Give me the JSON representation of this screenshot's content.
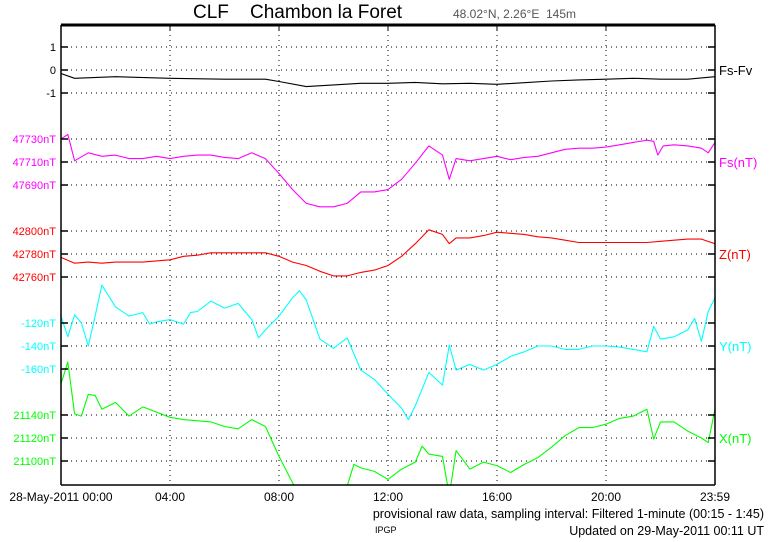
{
  "header": {
    "title": "CLF    Chambon la Foret",
    "coords": "48.02°N, 2.26°E  145m"
  },
  "footer": {
    "note": "provisional raw data, sampling interval: Filtered 1-minute (00:15 - 1:45)",
    "org": "IPGP",
    "updated": "Updated on 29-May-2011 00:11 UT"
  },
  "chart_data": {
    "type": "line",
    "x_unit": "hours",
    "x_range": [
      0,
      24
    ],
    "x_ticks": [
      0,
      4,
      8,
      12,
      16,
      20,
      24
    ],
    "x_tick_labels": [
      "28-May-2011 00:00",
      "04:00",
      "08:00",
      "12:00",
      "16:00",
      "20:00",
      "23:59"
    ],
    "grid": true,
    "series": [
      {
        "name": "Fs-Fv",
        "color": "#000000",
        "ticks": [
          1,
          0,
          -1
        ],
        "tick_labels": [
          "1",
          "0",
          "-1"
        ],
        "x": [
          0,
          0.5,
          2,
          4,
          6,
          7.5,
          8,
          9,
          10,
          11,
          12,
          13,
          14,
          15,
          16,
          17,
          18,
          19,
          20,
          21,
          22,
          23,
          24
        ],
        "values": [
          -0.15,
          -0.36,
          -0.29,
          -0.36,
          -0.4,
          -0.4,
          -0.5,
          -0.72,
          -0.65,
          -0.58,
          -0.58,
          -0.54,
          -0.6,
          -0.58,
          -0.62,
          -0.55,
          -0.48,
          -0.43,
          -0.4,
          -0.36,
          -0.4,
          -0.4,
          -0.29
        ]
      },
      {
        "name": "Fs(nT)",
        "color": "#ff00ff",
        "ticks": [
          47730,
          47710,
          47690
        ],
        "tick_labels": [
          "47730nT",
          "47710nT",
          "47690nT"
        ],
        "x": [
          0,
          0.25,
          0.5,
          1,
          1.5,
          2,
          2.5,
          3,
          3.5,
          4,
          4.5,
          5,
          5.5,
          6,
          6.5,
          7,
          7.5,
          8,
          8.5,
          9,
          9.5,
          10,
          10.5,
          11,
          11.5,
          12,
          12.5,
          13,
          13.5,
          14,
          14.25,
          14.5,
          15,
          15.5,
          16,
          16.5,
          17,
          17.5,
          18,
          18.5,
          19,
          19.5,
          20,
          20.5,
          21,
          21.5,
          21.75,
          21.9,
          22.1,
          22.5,
          23,
          23.5,
          23.75,
          24
        ],
        "values": [
          47730,
          47734,
          47711,
          47718,
          47715,
          47716,
          47713,
          47713,
          47715,
          47713,
          47715,
          47716,
          47716,
          47714,
          47713,
          47718,
          47713,
          47700,
          47686,
          47674,
          47671,
          47671,
          47674,
          47684,
          47684,
          47686,
          47695,
          47709,
          47724,
          47716,
          47695,
          47713,
          47711,
          47713,
          47715,
          47712,
          47714,
          47715,
          47718,
          47721,
          47722,
          47722,
          47723,
          47725,
          47727,
          47729,
          47728,
          47716,
          47724,
          47725,
          47724,
          47722,
          47718,
          47727
        ]
      },
      {
        "name": "Z(nT)",
        "color": "#ff0000",
        "ticks": [
          42800,
          42780,
          42760
        ],
        "tick_labels": [
          "42800nT",
          "42780nT",
          "42760nT"
        ],
        "x": [
          0,
          0.5,
          1,
          1.5,
          2,
          2.5,
          3,
          3.5,
          4,
          4.5,
          5,
          5.5,
          6,
          6.5,
          7,
          7.5,
          8,
          8.5,
          9,
          9.5,
          10,
          10.5,
          11,
          11.5,
          12,
          12.5,
          13,
          13.5,
          14,
          14.25,
          14.5,
          15,
          15.5,
          16,
          16.5,
          17,
          17.5,
          18,
          18.5,
          19,
          19.5,
          20,
          20.5,
          21,
          21.5,
          22,
          22.5,
          23,
          23.5,
          24
        ],
        "values": [
          42777,
          42772,
          42773,
          42772,
          42773,
          42773,
          42773,
          42774,
          42775,
          42778,
          42779,
          42781,
          42781,
          42781,
          42781,
          42781,
          42778,
          42773,
          42770,
          42765,
          42761,
          42761,
          42764,
          42766,
          42770,
          42778,
          42789,
          42801,
          42797,
          42789,
          42794,
          42794,
          42796,
          42799,
          42798,
          42797,
          42795,
          42794,
          42792,
          42790,
          42790,
          42790,
          42790,
          42790,
          42790,
          42791,
          42792,
          42793,
          42793,
          42789
        ]
      },
      {
        "name": "Y(nT)",
        "color": "#00ffff",
        "ticks": [
          -120,
          -140,
          -160
        ],
        "tick_labels": [
          "-120nT",
          "-140nT",
          "-160nT"
        ],
        "x": [
          0,
          0.25,
          0.5,
          0.75,
          1,
          1.25,
          1.5,
          2,
          2.5,
          3,
          3.25,
          3.5,
          4,
          4.5,
          4.75,
          5,
          5.5,
          6,
          6.5,
          7,
          7.25,
          7.5,
          8,
          8.5,
          8.75,
          9,
          9.5,
          10,
          10.5,
          11,
          11.5,
          12,
          12.5,
          12.75,
          13,
          13.5,
          14,
          14.25,
          14.5,
          15,
          15.5,
          16,
          16.5,
          17,
          17.5,
          18,
          18.5,
          19,
          19.5,
          20,
          20.5,
          21,
          21.5,
          21.75,
          22,
          22.5,
          23,
          23.25,
          23.5,
          23.75,
          24
        ],
        "values": [
          -114,
          -132,
          -113,
          -120,
          -140,
          -114,
          -87,
          -106,
          -114,
          -111,
          -121,
          -119,
          -117,
          -121,
          -111,
          -110,
          -101,
          -107,
          -103,
          -117,
          -133,
          -126,
          -114,
          -98,
          -92,
          -100,
          -134,
          -142,
          -133,
          -161,
          -169,
          -182,
          -194,
          -204,
          -192,
          -163,
          -174,
          -139,
          -161,
          -156,
          -161,
          -156,
          -149,
          -145,
          -140,
          -140,
          -143,
          -143,
          -140,
          -140,
          -141,
          -143,
          -145,
          -123,
          -134,
          -132,
          -126,
          -116,
          -136,
          -110,
          -98
        ]
      },
      {
        "name": "X(nT)",
        "color": "#00ff00",
        "ticks": [
          21140,
          21120,
          21100
        ],
        "tick_labels": [
          "21140nT",
          "21120nT",
          "21100nT"
        ],
        "x": [
          0,
          0.25,
          0.5,
          0.75,
          1,
          1.25,
          1.5,
          2,
          2.5,
          3,
          4,
          4.5,
          5,
          5.5,
          6,
          6.5,
          7,
          7.5,
          8,
          8.5,
          9,
          10,
          10.5,
          10.75,
          11,
          11.5,
          12,
          12.5,
          13,
          13.25,
          13.5,
          14,
          14.25,
          14.5,
          15,
          15.5,
          16,
          16.5,
          17,
          17.5,
          18,
          18.5,
          19,
          19.5,
          20,
          20.5,
          21,
          21.5,
          21.75,
          22,
          22.5,
          23,
          23.5,
          23.75,
          24
        ],
        "values": [
          21167,
          21186,
          21141,
          21139,
          21158,
          21157,
          21145,
          21151,
          21139,
          21147,
          21138,
          21136,
          21135,
          21134,
          21130,
          21128,
          21136,
          21130,
          21104,
          21081,
          21060,
          21060,
          21078,
          21097,
          21094,
          21091,
          21084,
          21093,
          21099,
          21113,
          21106,
          21104,
          21070,
          21109,
          21093,
          21099,
          21096,
          21090,
          21097,
          21103,
          21112,
          21122,
          21129,
          21129,
          21132,
          21137,
          21139,
          21145,
          21119,
          21134,
          21134,
          21126,
          21120,
          21116,
          21145
        ]
      }
    ]
  }
}
